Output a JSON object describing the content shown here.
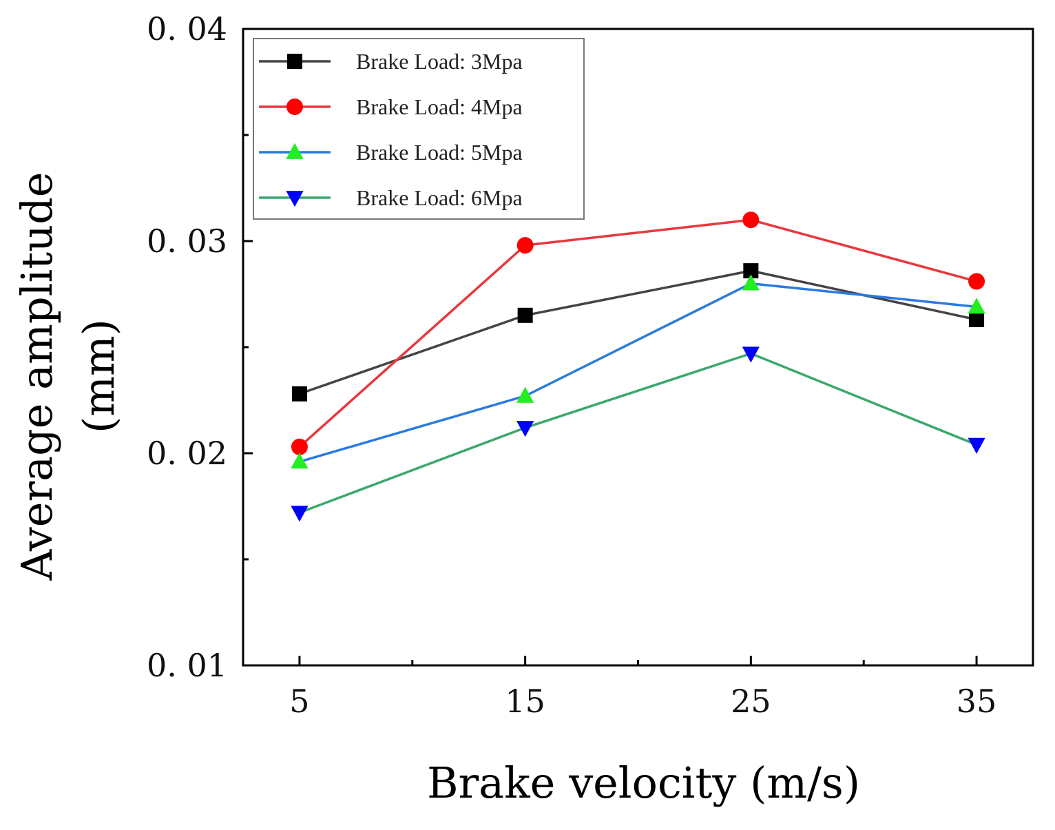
{
  "chart_data": {
    "type": "line",
    "title": "",
    "xlabel": "Brake velocity (m/s)",
    "ylabel_line1": "Average amplitude",
    "ylabel_line2": "(mm)",
    "x": [
      5,
      15,
      25,
      35
    ],
    "xlim": [
      2.5,
      37.5
    ],
    "ylim": [
      0.01,
      0.04
    ],
    "x_tick_labels": [
      "5",
      "15",
      "25",
      "35"
    ],
    "y_tick_labels": [
      "0. 01",
      "0. 02",
      "0. 03",
      "0. 04"
    ],
    "grid": false,
    "legend_position": "top-left",
    "series": [
      {
        "name": "Brake Load: 3Mpa",
        "line_color": "#444444",
        "marker_color": "#000000",
        "marker": "square",
        "values": [
          0.0228,
          0.0265,
          0.0286,
          0.0263
        ]
      },
      {
        "name": "Brake Load: 4Mpa",
        "line_color": "#e8383d",
        "marker_color": "#ff0000",
        "marker": "circle",
        "values": [
          0.0203,
          0.0298,
          0.031,
          0.0281
        ]
      },
      {
        "name": "Brake Load: 5Mpa",
        "line_color": "#2a7ae2",
        "marker_color": "#22ee22",
        "marker": "triangle-up",
        "values": [
          0.0196,
          0.0227,
          0.028,
          0.0269
        ]
      },
      {
        "name": "Brake Load: 6Mpa",
        "line_color": "#3aa86b",
        "marker_color": "#0000ff",
        "marker": "triangle-down",
        "values": [
          0.0172,
          0.0212,
          0.0247,
          0.0204
        ]
      }
    ]
  }
}
